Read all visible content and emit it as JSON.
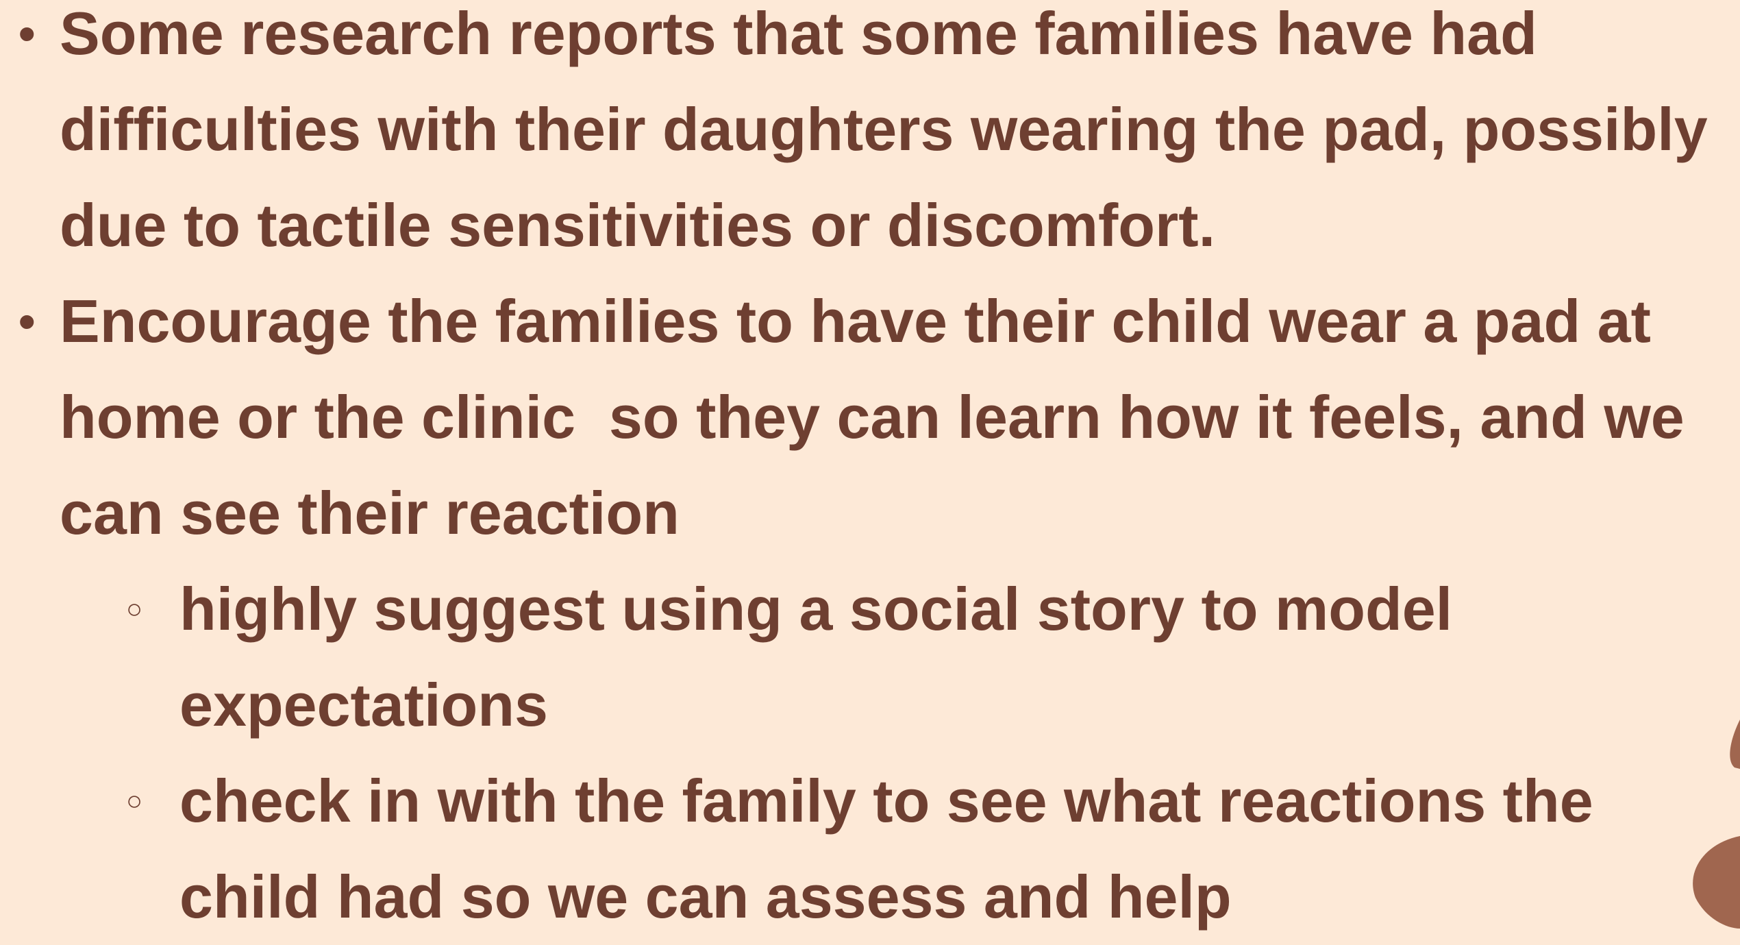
{
  "bullets": [
    {
      "text": "Some research reports that some families have had difficulties with their daughters wearing the pad, possibly due to tactile sensitivities or discomfort."
    },
    {
      "text": "Encourage the families to have their child wear a pad at home or the clinic  so they can learn how it feels, and we can see their reaction",
      "sub_bullets": [
        "highly suggest using a social story to model expectations",
        "check in with the family to see what reactions the child had so we can assess and help"
      ]
    }
  ]
}
